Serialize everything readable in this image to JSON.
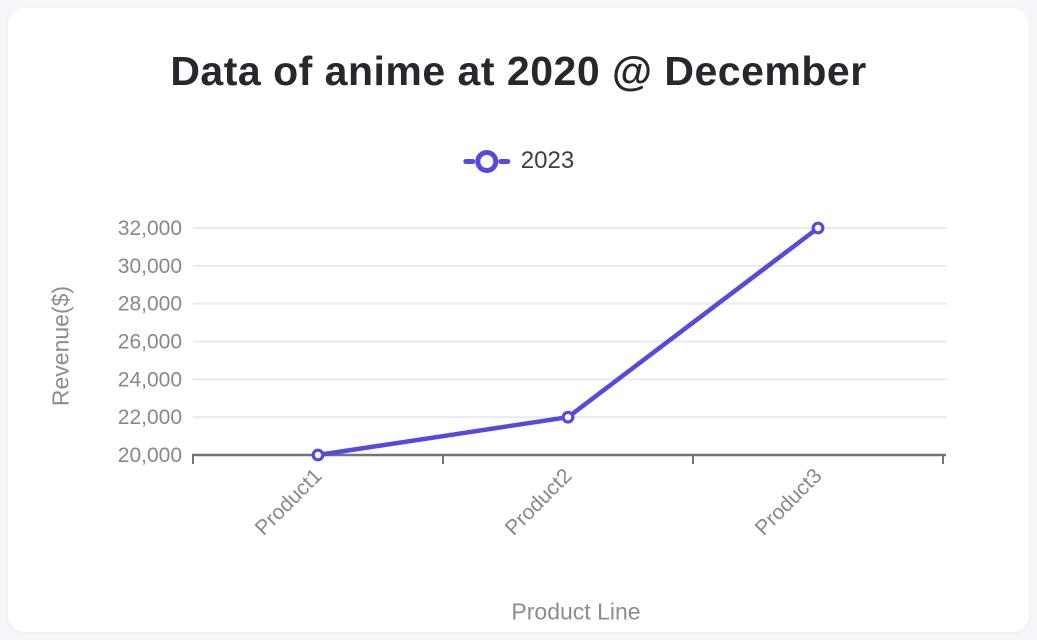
{
  "page": {
    "background_color": "#f5f6f9",
    "card_color": "#ffffff"
  },
  "chart_data": {
    "type": "line",
    "title": "Data of anime at 2020 @ December",
    "categories": [
      "Product1",
      "Product2",
      "Product3"
    ],
    "series": [
      {
        "name": "2023",
        "values": [
          20000,
          22000,
          32000
        ]
      }
    ],
    "xlabel": "Product Line",
    "ylabel": "Revenue($)",
    "ylim": [
      20000,
      32000
    ],
    "ytick_step": 2000,
    "ytick_labels": [
      "20,000",
      "22,000",
      "24,000",
      "26,000",
      "28,000",
      "30,000",
      "32,000"
    ],
    "grid": true,
    "legend_position": "top",
    "colors": {
      "series": "#5549e2",
      "marker_fill": "#ffffff",
      "gridline": "#e8eaf3",
      "axis_line": "#71757b",
      "tick_label": "#85888d",
      "axis_title": "#8a8d90",
      "title": "#26282e",
      "legend_text": "#3b3e43"
    }
  }
}
